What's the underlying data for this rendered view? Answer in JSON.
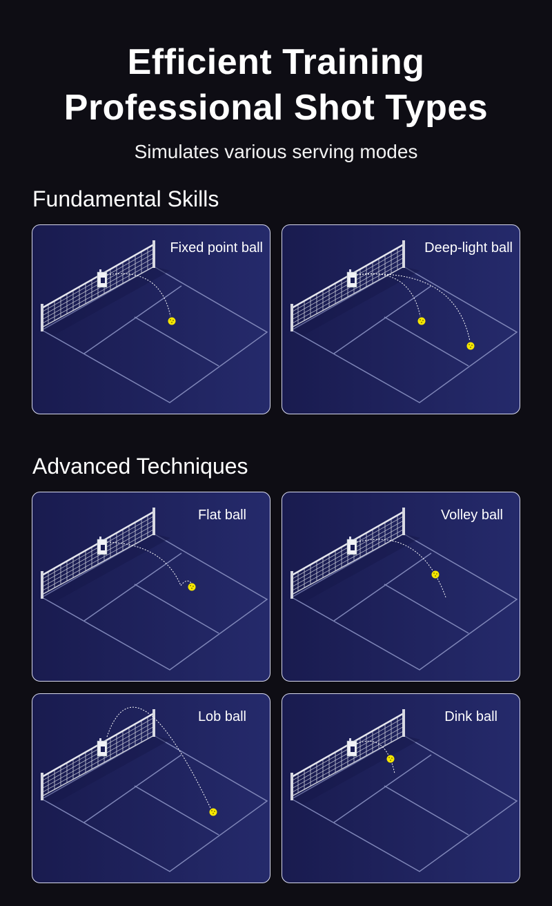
{
  "header": {
    "title_line1": "Efficient Training",
    "title_line2": "Professional Shot Types",
    "subtitle": "Simulates various serving modes"
  },
  "sections": [
    {
      "title": "Fundamental Skills",
      "cards": [
        {
          "label": "Fixed point ball"
        },
        {
          "label": "Deep-light ball"
        }
      ]
    },
    {
      "title": "Advanced Techniques",
      "cards": [
        {
          "label": "Flat ball"
        },
        {
          "label": "Volley ball"
        },
        {
          "label": "Lob ball"
        },
        {
          "label": "Dink ball"
        }
      ]
    }
  ],
  "colors": {
    "background": "#0e0d14",
    "card": "#1f2260",
    "ball": "#f5e600",
    "court_lines": "#7f86b8"
  }
}
